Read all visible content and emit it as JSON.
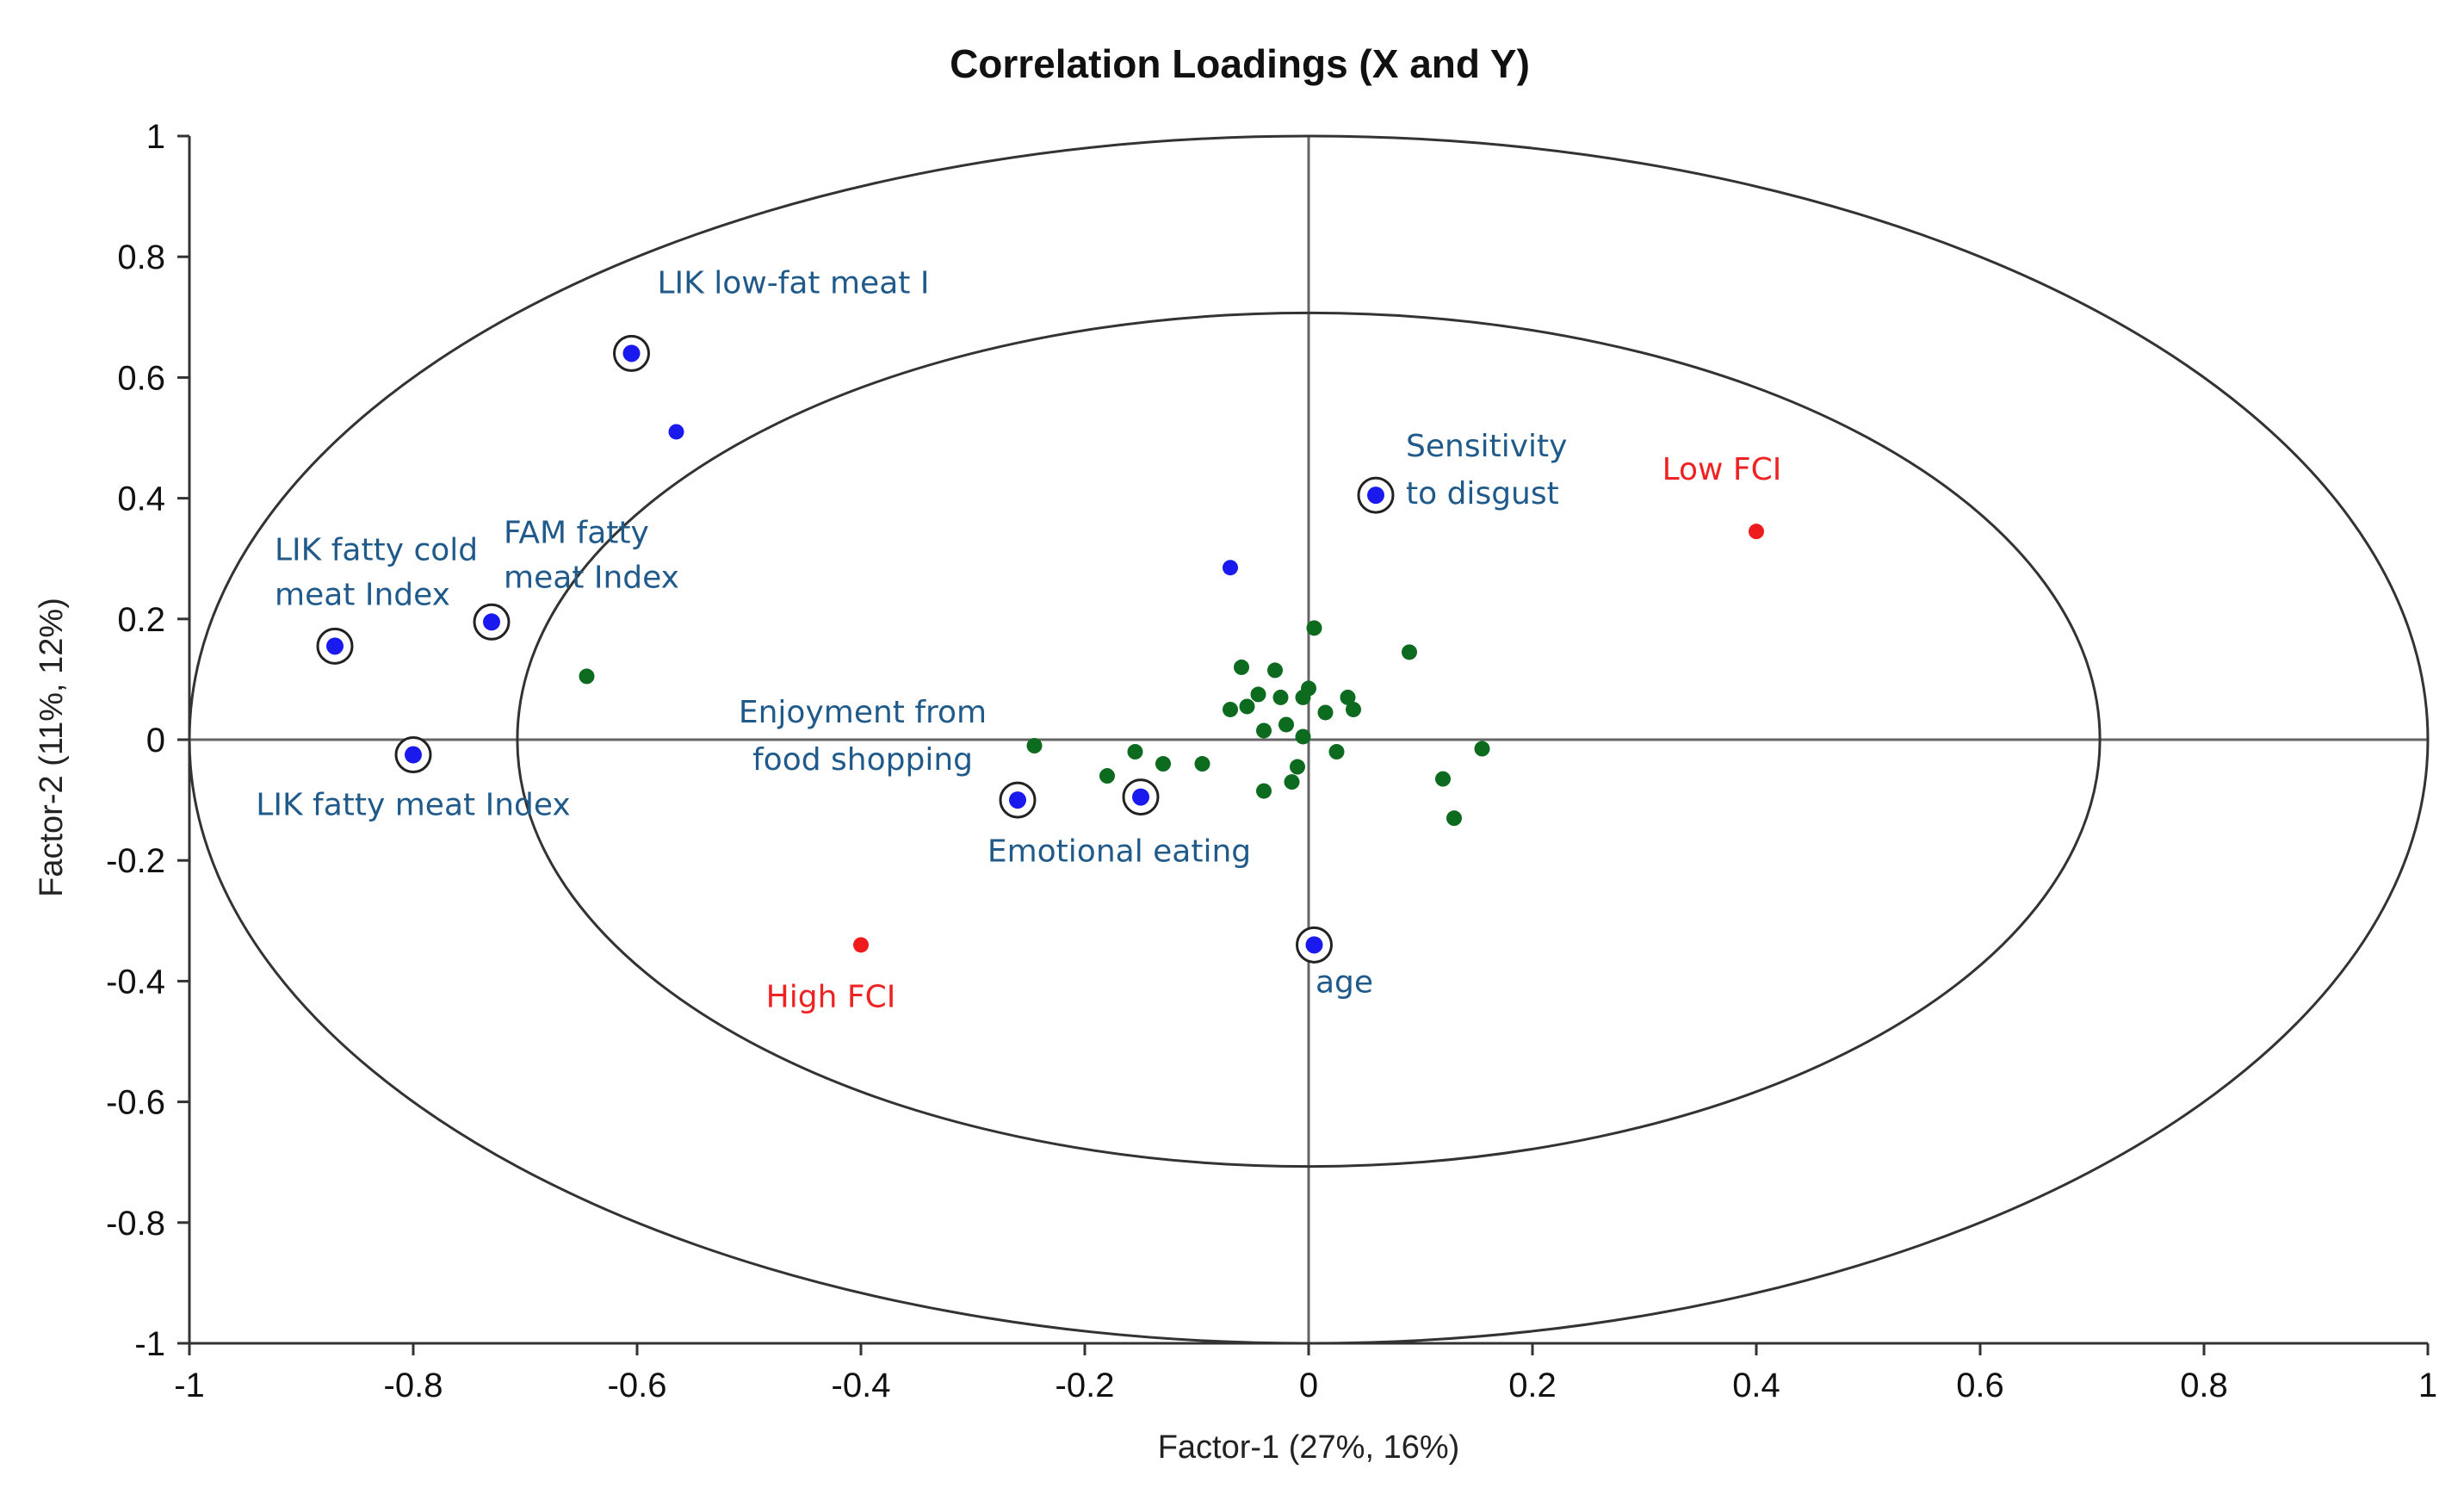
{
  "chart_data": {
    "type": "scatter",
    "title": "Correlation Loadings (X and Y)",
    "xlabel": "Factor-1 (27%, 16%)",
    "ylabel": "Factor-2 (11%, 12%)",
    "xlim": [
      -1,
      1
    ],
    "ylim": [
      -1,
      1
    ],
    "x_ticks": [
      "-1",
      "-0.8",
      "-0.6",
      "-0.4",
      "-0.2",
      "0",
      "0.2",
      "0.4",
      "0.6",
      "0.8",
      "1"
    ],
    "y_ticks": [
      "1",
      "0.8",
      "0.6",
      "0.4",
      "0.2",
      "0",
      "-0.2",
      "-0.4",
      "-0.6",
      "-0.8",
      "-1"
    ],
    "ellipses": [
      {
        "name": "outer",
        "rx": 1.0,
        "ry": 1.0
      },
      {
        "name": "inner",
        "rx": 0.707,
        "ry": 0.707
      }
    ],
    "colors": {
      "x_variables": "#1a1aee",
      "y_variables": "#ee1c1c",
      "other_variables": "#0d6b1f",
      "label_blue": "#1f5a8a",
      "label_red": "#ee2222",
      "axis": "#666666"
    },
    "series": [
      {
        "name": "highlighted X variables",
        "color": "#1a1aee",
        "circled": true,
        "points": [
          {
            "x": -0.605,
            "y": 0.64,
            "label": "LIK low-fat meat I"
          },
          {
            "x": -0.87,
            "y": 0.155,
            "label": "LIK fatty cold meat Index"
          },
          {
            "x": -0.73,
            "y": 0.195,
            "label": "FAM fatty meat Index"
          },
          {
            "x": -0.8,
            "y": -0.025,
            "label": "LIK fatty meat Index"
          },
          {
            "x": -0.26,
            "y": -0.1,
            "label": "Enjoyment from food shopping"
          },
          {
            "x": -0.15,
            "y": -0.095,
            "label": "Emotional eating"
          },
          {
            "x": 0.06,
            "y": 0.405,
            "label": "Sensitivity to disgust"
          },
          {
            "x": 0.005,
            "y": -0.34,
            "label": "age"
          }
        ]
      },
      {
        "name": "other X variables",
        "color": "#1a1aee",
        "circled": false,
        "points": [
          {
            "x": -0.565,
            "y": 0.51
          },
          {
            "x": -0.07,
            "y": 0.285
          }
        ]
      },
      {
        "name": "Y variables",
        "color": "#ee1c1c",
        "circled": false,
        "points": [
          {
            "x": 0.4,
            "y": 0.345,
            "label": "Low FCI"
          },
          {
            "x": -0.4,
            "y": -0.34,
            "label": "High FCI"
          }
        ]
      },
      {
        "name": "remaining variables",
        "color": "#0d6b1f",
        "circled": false,
        "points": [
          {
            "x": -0.645,
            "y": 0.105
          },
          {
            "x": -0.245,
            "y": -0.01
          },
          {
            "x": -0.18,
            "y": -0.06
          },
          {
            "x": -0.155,
            "y": -0.02
          },
          {
            "x": -0.13,
            "y": -0.04
          },
          {
            "x": -0.095,
            "y": -0.04
          },
          {
            "x": -0.07,
            "y": 0.05
          },
          {
            "x": -0.06,
            "y": 0.12
          },
          {
            "x": -0.055,
            "y": 0.055
          },
          {
            "x": -0.045,
            "y": 0.075
          },
          {
            "x": -0.04,
            "y": 0.015
          },
          {
            "x": -0.04,
            "y": -0.085
          },
          {
            "x": -0.03,
            "y": 0.115
          },
          {
            "x": -0.025,
            "y": 0.07
          },
          {
            "x": -0.02,
            "y": 0.025
          },
          {
            "x": -0.015,
            "y": -0.07
          },
          {
            "x": -0.01,
            "y": -0.045
          },
          {
            "x": -0.005,
            "y": 0.07
          },
          {
            "x": -0.005,
            "y": 0.005
          },
          {
            "x": 0.0,
            "y": 0.085
          },
          {
            "x": 0.005,
            "y": 0.185
          },
          {
            "x": 0.015,
            "y": 0.045
          },
          {
            "x": 0.025,
            "y": -0.02
          },
          {
            "x": 0.035,
            "y": 0.07
          },
          {
            "x": 0.04,
            "y": 0.05
          },
          {
            "x": 0.09,
            "y": 0.145
          },
          {
            "x": 0.12,
            "y": -0.065
          },
          {
            "x": 0.13,
            "y": -0.13
          },
          {
            "x": 0.155,
            "y": -0.015
          }
        ]
      }
    ]
  }
}
